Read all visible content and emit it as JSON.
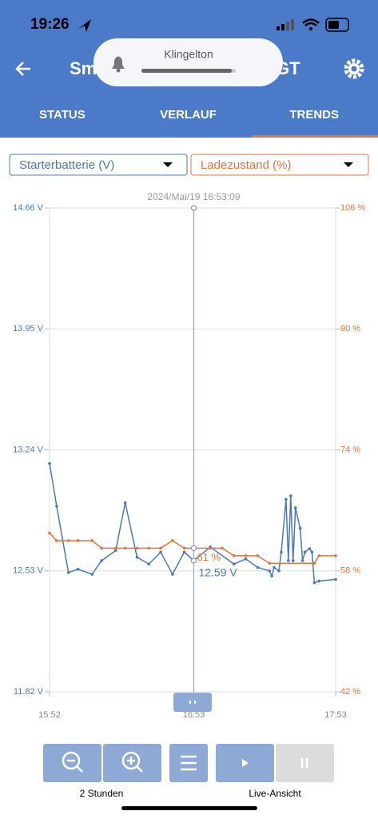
{
  "status_bar": {
    "time": "19:26"
  },
  "notification": {
    "title": "Klingelton"
  },
  "header": {
    "title_left": "Sm",
    "title_right": "GT"
  },
  "tabs": {
    "items": [
      "STATUS",
      "VERLAUF",
      "TRENDS"
    ],
    "active": 2
  },
  "chart_data": {
    "type": "line",
    "cursor": {
      "x": "16:53",
      "label": "2024/Mai/19 16:53:09"
    },
    "annotations": [
      {
        "x": "16:53",
        "value": 61,
        "label": "61 %",
        "axis": "y2"
      },
      {
        "x": "16:53",
        "value": 12.59,
        "label": "12.59 V",
        "axis": "y"
      }
    ],
    "xlim": [
      "15:52",
      "17:53"
    ],
    "xticks": [
      "15:52",
      "16:53",
      "17:53"
    ],
    "ylim": [
      11.82,
      14.66
    ],
    "yticks": [
      {
        "value": 11.82,
        "label": "11.82 V"
      },
      {
        "value": 12.53,
        "label": "12.53 V"
      },
      {
        "value": 13.24,
        "label": "13.24 V"
      },
      {
        "value": 13.95,
        "label": "13.95 V"
      },
      {
        "value": 14.66,
        "label": "14.66 V"
      }
    ],
    "y2lim": [
      42,
      106
    ],
    "y2ticks": [
      {
        "value": 42,
        "label": "42 %"
      },
      {
        "value": 58,
        "label": "58 %"
      },
      {
        "value": 74,
        "label": "74 %"
      },
      {
        "value": 90,
        "label": "90 %"
      },
      {
        "value": 106,
        "label": "106 %"
      }
    ],
    "grid": true,
    "series": [
      {
        "name": "Starterbatterie (V)",
        "color": "#4a78c0",
        "axis": "y",
        "x": [
          "15:52",
          "15:55",
          "16:00",
          "16:04",
          "16:10",
          "16:14",
          "16:20",
          "16:24",
          "16:29",
          "16:34",
          "16:39",
          "16:44",
          "16:49",
          "16:53",
          "17:00",
          "17:10",
          "17:15",
          "17:20",
          "17:25",
          "17:26",
          "17:27",
          "17:29",
          "17:30",
          "17:32",
          "17:33",
          "17:34",
          "17:35",
          "17:36",
          "17:38",
          "17:39",
          "17:40",
          "17:42",
          "17:43",
          "17:44",
          "17:46",
          "17:53"
        ],
        "values": [
          13.16,
          12.91,
          12.52,
          12.54,
          12.51,
          12.59,
          12.65,
          12.93,
          12.61,
          12.57,
          12.64,
          12.51,
          12.64,
          12.59,
          12.67,
          12.57,
          12.6,
          12.55,
          12.53,
          12.5,
          12.55,
          12.53,
          12.64,
          12.95,
          12.59,
          12.97,
          12.59,
          12.9,
          12.78,
          12.59,
          12.64,
          12.66,
          12.64,
          12.46,
          12.47,
          12.48
        ]
      },
      {
        "name": "Ladezustand (%)",
        "color": "#e8733a",
        "axis": "y2",
        "x": [
          "15:52",
          "15:55",
          "16:00",
          "16:04",
          "16:10",
          "16:14",
          "16:20",
          "16:24",
          "16:29",
          "16:34",
          "16:39",
          "16:44",
          "16:49",
          "16:53",
          "17:00",
          "17:05",
          "17:10",
          "17:15",
          "17:20",
          "17:25",
          "17:44",
          "17:46",
          "17:53"
        ],
        "values": [
          63,
          62,
          62,
          62,
          62,
          61,
          61,
          61,
          61,
          61,
          61,
          62,
          61,
          61,
          61,
          61,
          60,
          60,
          60,
          59,
          59,
          60,
          60
        ]
      }
    ]
  },
  "footer": {
    "zoom_label": "2 Stunden",
    "live_label": "Live-Ansicht"
  }
}
